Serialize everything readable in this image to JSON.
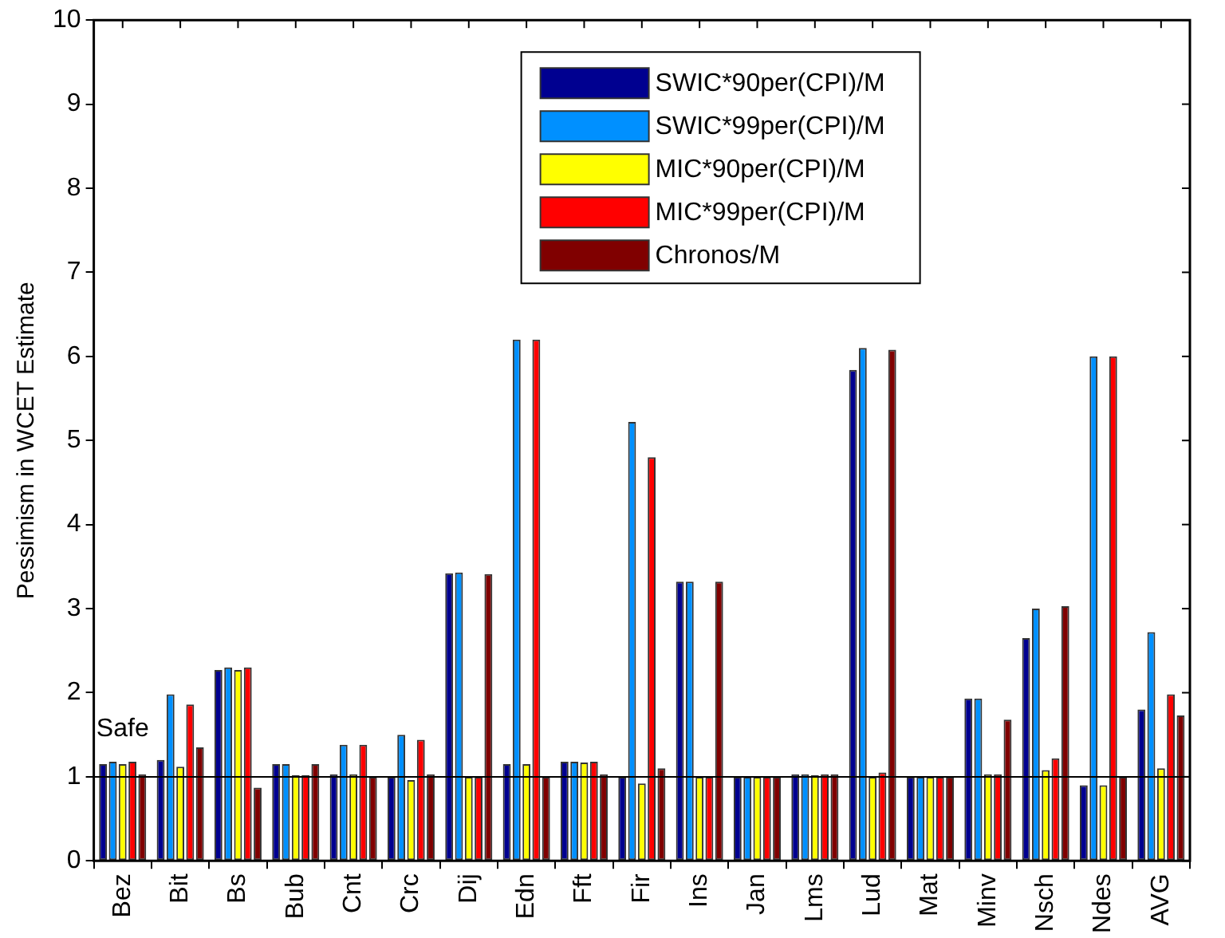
{
  "chart_data": {
    "type": "bar",
    "ylabel": "Pessimism in WCET Estimate",
    "categories": [
      "Bez",
      "Bit",
      "Bs",
      "Bub",
      "Cnt",
      "Crc",
      "Dij",
      "Edn",
      "Fft",
      "Fir",
      "Ins",
      "Jan",
      "Lms",
      "Lud",
      "Mat",
      "Minv",
      "Nsch",
      "Ndes",
      "AVG"
    ],
    "series": [
      {
        "name": "SWIC*90per(CPI)/M",
        "color": "#000090",
        "values": [
          1.15,
          1.2,
          2.27,
          1.15,
          1.03,
          1.0,
          3.42,
          1.15,
          1.18,
          1.0,
          3.32,
          1.0,
          1.03,
          5.84,
          1.0,
          1.93,
          2.65,
          0.9,
          1.8
        ]
      },
      {
        "name": "SWIC*99per(CPI)/M",
        "color": "#0090ff",
        "values": [
          1.18,
          1.98,
          2.3,
          1.15,
          1.38,
          1.5,
          3.43,
          6.2,
          1.18,
          5.22,
          3.32,
          1.0,
          1.03,
          6.1,
          1.0,
          1.93,
          3.0,
          6.0,
          2.72
        ]
      },
      {
        "name": "MIC*90per(CPI)/M",
        "color": "#ffff00",
        "values": [
          1.15,
          1.12,
          2.27,
          1.02,
          1.03,
          0.96,
          1.0,
          1.15,
          1.17,
          0.92,
          1.0,
          1.0,
          1.02,
          1.0,
          1.0,
          1.03,
          1.08,
          0.9,
          1.1
        ]
      },
      {
        "name": "MIC*99per(CPI)/M",
        "color": "#ff0000",
        "values": [
          1.18,
          1.86,
          2.3,
          1.02,
          1.38,
          1.44,
          1.0,
          6.2,
          1.18,
          4.8,
          1.0,
          1.0,
          1.03,
          1.05,
          1.0,
          1.03,
          1.22,
          6.0,
          1.98
        ]
      },
      {
        "name": "Chronos/M",
        "color": "#800000",
        "values": [
          1.03,
          1.35,
          0.87,
          1.15,
          1.0,
          1.03,
          3.41,
          1.0,
          1.03,
          1.1,
          3.32,
          1.0,
          1.03,
          6.08,
          1.0,
          1.68,
          3.03,
          1.0,
          1.73
        ]
      }
    ],
    "ylim": [
      0,
      10
    ],
    "yticks": [
      0,
      1,
      2,
      3,
      4,
      5,
      6,
      7,
      8,
      9,
      10
    ],
    "ref_lines": [
      {
        "axis": "y",
        "value": 1,
        "color": "#000000"
      }
    ],
    "annotations": [
      {
        "text": "Safe",
        "x": "Bez",
        "y": 1
      }
    ],
    "grid": false,
    "legend": "top right"
  }
}
